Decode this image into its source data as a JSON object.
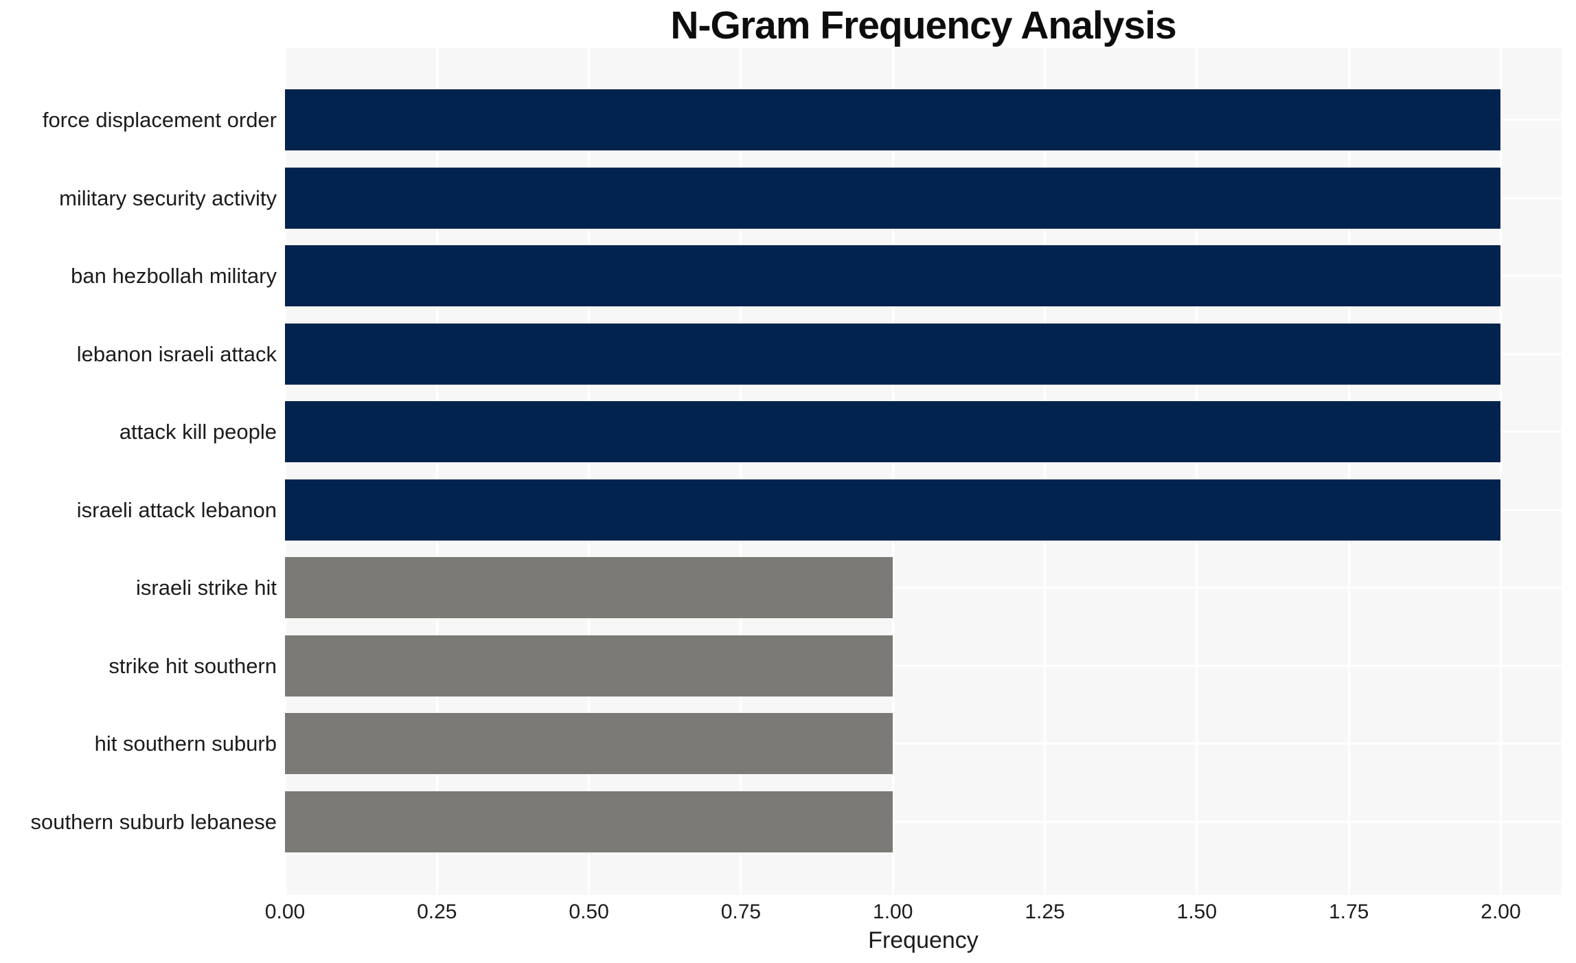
{
  "chart_data": {
    "type": "bar",
    "orientation": "horizontal",
    "title": "N-Gram Frequency Analysis",
    "xlabel": "Frequency",
    "ylabel": "",
    "categories": [
      "force displacement order",
      "military security activity",
      "ban hezbollah military",
      "lebanon israeli attack",
      "attack kill people",
      "israeli attack lebanon",
      "israeli strike hit",
      "strike hit southern",
      "hit southern suburb",
      "southern suburb lebanese"
    ],
    "values": [
      2,
      2,
      2,
      2,
      2,
      2,
      1,
      1,
      1,
      1
    ],
    "bar_colors": [
      "#02234e",
      "#02234e",
      "#02234e",
      "#02234e",
      "#02234e",
      "#02234e",
      "#7b7a76",
      "#7b7a76",
      "#7b7a76",
      "#7b7a76"
    ],
    "xlim": [
      0,
      2.1
    ],
    "xticks": [
      0,
      0.25,
      0.5,
      0.75,
      1.0,
      1.25,
      1.5,
      1.75,
      2.0
    ],
    "xtick_decimals": 2,
    "grid": true,
    "grid_color": "#ffffff",
    "plot_background": "#f7f7f7",
    "colors": {
      "high_frequency_bar": "#02234e",
      "low_frequency_bar": "#7b7a76",
      "text": "#1c1c1c"
    },
    "legend": "none"
  }
}
